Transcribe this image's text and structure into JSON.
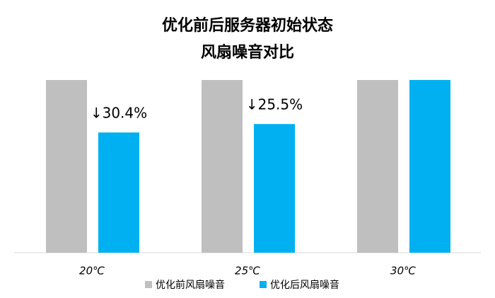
{
  "chart_data": {
    "type": "bar",
    "title": [
      "优化前后服务器初始状态",
      "风扇噪音对比"
    ],
    "categories": [
      "20℃",
      "25℃",
      "30℃"
    ],
    "series": [
      {
        "name": "优化前风扇噪音",
        "color": "#bfbfbf",
        "values": [
          100,
          100,
          100
        ]
      },
      {
        "name": "优化后风扇噪音",
        "color": "#00b0f0",
        "values": [
          69.6,
          74.5,
          100
        ]
      }
    ],
    "annotations": [
      "↓30.4%",
      "↓25.5%"
    ],
    "ylim": [
      0,
      100
    ]
  }
}
